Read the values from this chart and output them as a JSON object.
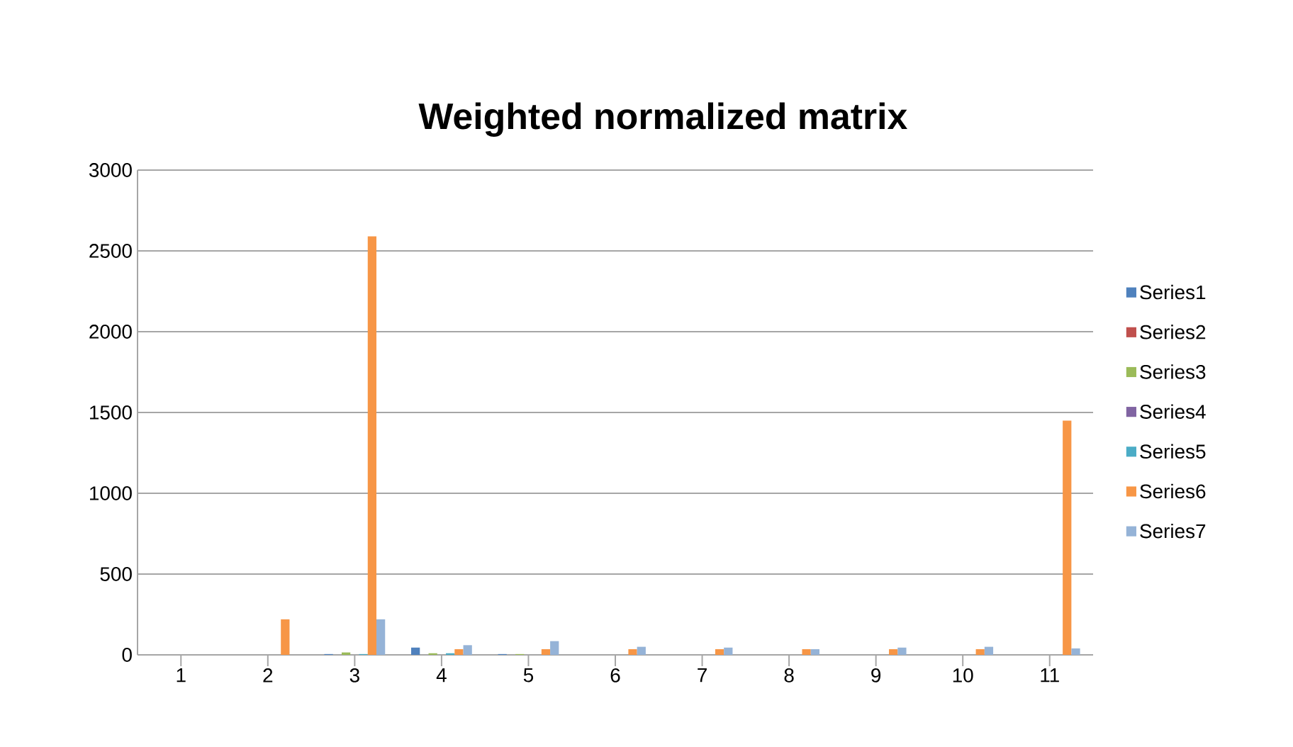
{
  "chart_data": {
    "type": "bar",
    "title": "Weighted normalized matrix",
    "categories": [
      "1",
      "2",
      "3",
      "4",
      "5",
      "6",
      "7",
      "8",
      "9",
      "10",
      "11"
    ],
    "series": [
      {
        "name": "Series1",
        "color": "#4f81bd",
        "values": [
          0,
          0,
          5,
          45,
          5,
          0,
          0,
          0,
          0,
          0,
          0
        ]
      },
      {
        "name": "Series2",
        "color": "#c0504d",
        "values": [
          0,
          0,
          0,
          0,
          0,
          0,
          0,
          0,
          0,
          0,
          0
        ]
      },
      {
        "name": "Series3",
        "color": "#9bbb59",
        "values": [
          0,
          0,
          15,
          10,
          5,
          0,
          0,
          0,
          0,
          0,
          0
        ]
      },
      {
        "name": "Series4",
        "color": "#8064a2",
        "values": [
          0,
          0,
          0,
          0,
          0,
          0,
          0,
          0,
          0,
          0,
          0
        ]
      },
      {
        "name": "Series5",
        "color": "#4bacc6",
        "values": [
          0,
          0,
          5,
          10,
          0,
          0,
          0,
          0,
          0,
          0,
          0
        ]
      },
      {
        "name": "Series6",
        "color": "#f79646",
        "values": [
          0,
          220,
          2590,
          35,
          35,
          35,
          35,
          35,
          35,
          35,
          1450
        ]
      },
      {
        "name": "Series7",
        "color": "#95b3d7",
        "values": [
          0,
          0,
          220,
          60,
          85,
          50,
          45,
          35,
          45,
          50,
          40
        ]
      }
    ],
    "ylim": [
      0,
      3000
    ],
    "yticks": [
      0,
      500,
      1000,
      1500,
      2000,
      2500,
      3000
    ],
    "grid": "y",
    "legend": "right"
  }
}
